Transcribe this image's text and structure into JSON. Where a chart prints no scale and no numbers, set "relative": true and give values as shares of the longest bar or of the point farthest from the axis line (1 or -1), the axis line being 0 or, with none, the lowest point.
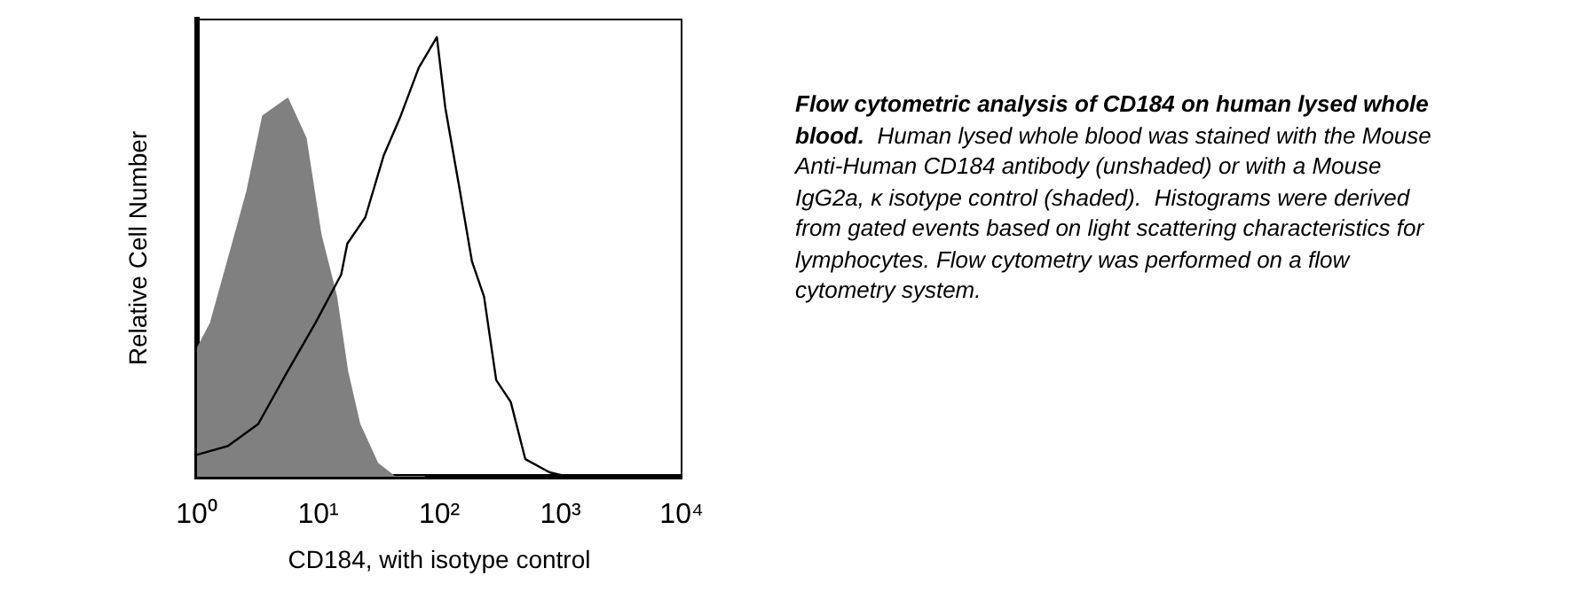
{
  "chart_data": {
    "type": "area",
    "relative": true,
    "log": "x",
    "grid": false,
    "legend": false,
    "xlabel": "CD184, with isotype control",
    "ylabel": "Relative Cell Number",
    "xlim": [
      1,
      10000
    ],
    "xticks": [
      {
        "value": 1,
        "label": "10⁰"
      },
      {
        "value": 10,
        "label": "10¹"
      },
      {
        "value": 100,
        "label": "10²"
      },
      {
        "value": 1000,
        "label": "10³"
      },
      {
        "value": 10000,
        "label": "10⁴"
      }
    ],
    "series": [
      {
        "color": "#808080",
        "x": [
          1,
          1.3,
          1.8,
          2.6,
          3.5,
          5.6,
          7.9,
          10.5,
          14.1,
          17.4,
          21.9,
          30.9,
          42.7,
          75.9
        ],
        "values": [
          0.29,
          0.35,
          0.49,
          0.65,
          0.82,
          0.86,
          0.77,
          0.55,
          0.41,
          0.24,
          0.12,
          0.03,
          0,
          0
        ]
      },
      {
        "type": "line",
        "color": "#000000",
        "x": [
          1,
          1.8,
          3.2,
          5.6,
          9.5,
          15.5,
          17.4,
          24.5,
          34.7,
          47.9,
          67.6,
          95.5,
          112,
          148,
          186,
          234,
          295,
          389,
          513,
          813,
          1150
        ],
        "values": [
          0.05,
          0.07,
          0.12,
          0.24,
          0.35,
          0.46,
          0.53,
          0.59,
          0.73,
          0.82,
          0.93,
          1,
          0.84,
          0.65,
          0.49,
          0.41,
          0.22,
          0.17,
          0.04,
          0.01,
          0
        ]
      }
    ],
    "annotations": [
      "Flow cytometric analysis of CD184 on human lysed whole blood.",
      "Human lysed whole blood was stained with the Mouse Anti-Human CD184 antibody (unshaded) or with a Mouse IgG2a, κ isotype control (shaded).  Histograms were derived from gated events based on light scattering characteristics for lymphocytes. Flow cytometry was performed on a flow cytometry system."
    ]
  }
}
